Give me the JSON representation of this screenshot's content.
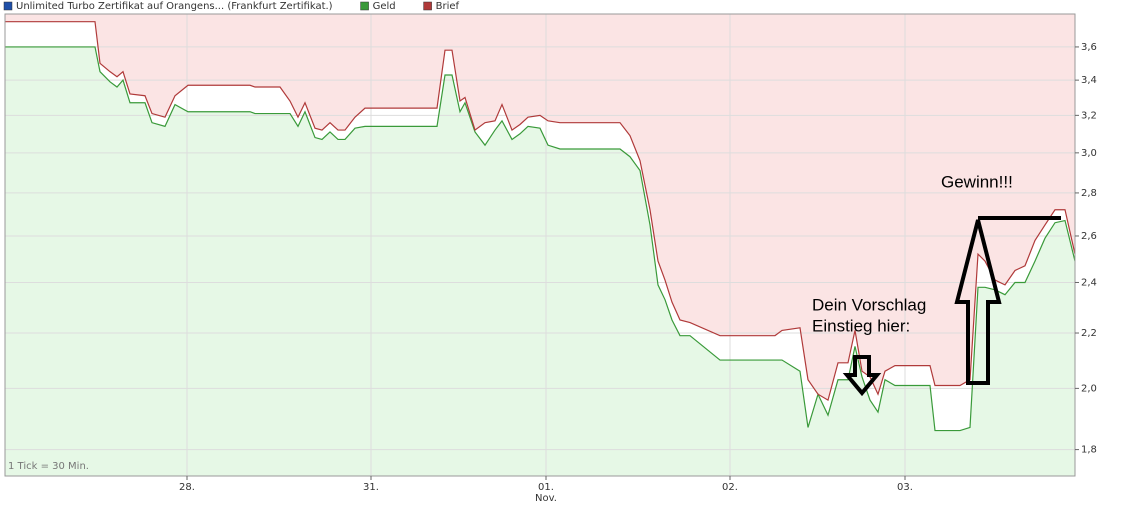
{
  "chart_data": {
    "type": "area",
    "instrument": "Unlimited Turbo Zertifikat auf Orangens... (Frankfurt Zertifikat.)",
    "instrument_color": "#1f4fa8",
    "note": "1 Tick = 30 Min.",
    "annotations": [
      "Dein Vorschlag",
      "Einstieg hier:",
      "Gewinn!!!"
    ],
    "month_label": "Nov.",
    "x": [
      0,
      9,
      9.5,
      10.5,
      11.2,
      11.8,
      12.5,
      14,
      14.7,
      16,
      17,
      18.3,
      24.5,
      25,
      27.5,
      28.5,
      29.3,
      30,
      31,
      31.7,
      32.5,
      33.3,
      34,
      35,
      36,
      43.2,
      44,
      44.7,
      45.5,
      46,
      47,
      48,
      49,
      49.7,
      50.7,
      51.5,
      52.3,
      53.5,
      54.3,
      55.5,
      61.5,
      62.5,
      63.5,
      64.5,
      65.3,
      66,
      66.7,
      67.5,
      68.5,
      71.5,
      77,
      77.7,
      79.5,
      80.3,
      81.3,
      82.3,
      83.3,
      84.3,
      85,
      85.7,
      86.5,
      87.3,
      88,
      89,
      92.5,
      93,
      95.5,
      96.5,
      97.3,
      98,
      99,
      100,
      101,
      102,
      103,
      104,
      105,
      106,
      107
    ],
    "series": [
      {
        "name": "Geld",
        "color": "#3a9a3a",
        "values": [
          3.6,
          3.6,
          3.45,
          3.39,
          3.36,
          3.4,
          3.27,
          3.27,
          3.16,
          3.14,
          3.26,
          3.22,
          3.22,
          3.21,
          3.21,
          3.21,
          3.14,
          3.22,
          3.08,
          3.07,
          3.11,
          3.07,
          3.07,
          3.13,
          3.14,
          3.14,
          3.43,
          3.43,
          3.22,
          3.27,
          3.11,
          3.04,
          3.12,
          3.17,
          3.07,
          3.1,
          3.14,
          3.13,
          3.04,
          3.02,
          3.02,
          2.98,
          2.91,
          2.65,
          2.39,
          2.33,
          2.25,
          2.19,
          2.19,
          2.1,
          2.1,
          2.1,
          2.06,
          1.87,
          1.98,
          1.91,
          2.03,
          2.03,
          2.15,
          2.04,
          1.96,
          1.92,
          2.03,
          2.01,
          2.01,
          1.86,
          1.86,
          1.87,
          2.38,
          2.38,
          2.37,
          2.35,
          2.4,
          2.4,
          2.49,
          2.59,
          2.66,
          2.67,
          2.49
        ]
      },
      {
        "name": "Brief",
        "color": "#b03a3a",
        "values": [
          3.76,
          3.76,
          3.5,
          3.45,
          3.42,
          3.45,
          3.32,
          3.31,
          3.21,
          3.19,
          3.31,
          3.37,
          3.37,
          3.36,
          3.36,
          3.28,
          3.19,
          3.27,
          3.13,
          3.12,
          3.16,
          3.12,
          3.12,
          3.19,
          3.24,
          3.24,
          3.58,
          3.58,
          3.28,
          3.3,
          3.12,
          3.16,
          3.17,
          3.26,
          3.12,
          3.15,
          3.19,
          3.2,
          3.17,
          3.16,
          3.16,
          3.09,
          2.96,
          2.72,
          2.49,
          2.41,
          2.32,
          2.25,
          2.24,
          2.19,
          2.19,
          2.21,
          2.22,
          2.03,
          1.98,
          1.96,
          2.09,
          2.09,
          2.21,
          2.06,
          2.04,
          1.98,
          2.06,
          2.08,
          2.08,
          2.01,
          2.01,
          2.03,
          2.52,
          2.49,
          2.41,
          2.39,
          2.45,
          2.47,
          2.58,
          2.65,
          2.72,
          2.72,
          2.52
        ]
      }
    ],
    "xlim": [
      0,
      107
    ],
    "xticks": [
      {
        "value": 18.2,
        "label": "28."
      },
      {
        "value": 36.6,
        "label": "31."
      },
      {
        "value": 54.1,
        "label": "01."
      },
      {
        "value": 72.5,
        "label": "02."
      },
      {
        "value": 90,
        "label": "03."
      }
    ],
    "ylim": [
      1.72,
      3.81
    ],
    "ylog": true,
    "yticks": [
      {
        "value": 1.8,
        "label": "1,8"
      },
      {
        "value": 2.0,
        "label": "2,0"
      },
      {
        "value": 2.2,
        "label": "2,2"
      },
      {
        "value": 2.4,
        "label": "2,4"
      },
      {
        "value": 2.6,
        "label": "2,6"
      },
      {
        "value": 2.8,
        "label": "2,8"
      },
      {
        "value": 3.0,
        "label": "3,0"
      },
      {
        "value": 3.2,
        "label": "3,2"
      },
      {
        "value": 3.4,
        "label": "3,4"
      },
      {
        "value": 3.6,
        "label": "3,6"
      }
    ],
    "grid": true,
    "fills": {
      "below_lower": "#e6f8e6",
      "above_upper": "#fbe4e4",
      "between": "#ffffff"
    }
  }
}
